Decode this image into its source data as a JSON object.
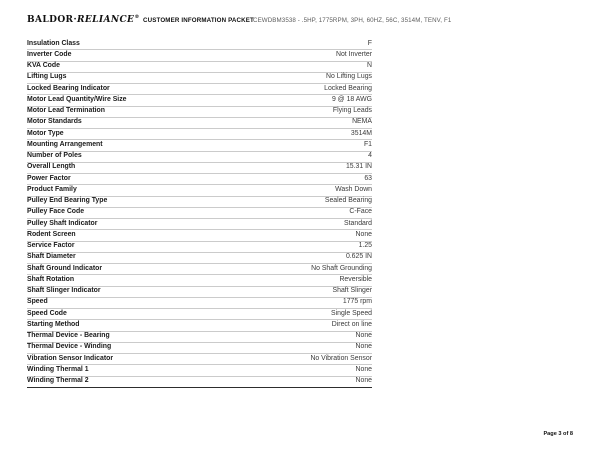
{
  "header": {
    "logo": {
      "baldor": "BALDOR",
      "separator": "·",
      "reliance": "RELIANCE",
      "mark": "®"
    },
    "title": "CUSTOMER INFORMATION PACKET",
    "product_description": "CEWDBM3538 - .5HP, 1775RPM, 3PH, 60HZ, 56C, 3514M, TENV, F1"
  },
  "spec_table": {
    "rows": [
      {
        "label": "Insulation Class",
        "value": "F"
      },
      {
        "label": "Inverter Code",
        "value": "Not Inverter"
      },
      {
        "label": "KVA Code",
        "value": "N"
      },
      {
        "label": "Lifting Lugs",
        "value": "No Lifting Lugs"
      },
      {
        "label": "Locked Bearing Indicator",
        "value": "Locked Bearing"
      },
      {
        "label": "Motor Lead Quantity/Wire Size",
        "value": "9 @ 18 AWG"
      },
      {
        "label": "Motor Lead Termination",
        "value": "Flying Leads"
      },
      {
        "label": "Motor Standards",
        "value": "NEMA"
      },
      {
        "label": "Motor Type",
        "value": "3514M"
      },
      {
        "label": "Mounting Arrangement",
        "value": "F1"
      },
      {
        "label": "Number of Poles",
        "value": "4"
      },
      {
        "label": "Overall Length",
        "value": "15.31 IN"
      },
      {
        "label": "Power Factor",
        "value": "63"
      },
      {
        "label": "Product Family",
        "value": "Wash Down"
      },
      {
        "label": "Pulley End Bearing Type",
        "value": "Sealed Bearing"
      },
      {
        "label": "Pulley Face Code",
        "value": "C-Face"
      },
      {
        "label": "Pulley Shaft Indicator",
        "value": "Standard"
      },
      {
        "label": "Rodent Screen",
        "value": "None"
      },
      {
        "label": "Service Factor",
        "value": "1.25"
      },
      {
        "label": "Shaft Diameter",
        "value": "0.625 IN"
      },
      {
        "label": "Shaft Ground Indicator",
        "value": "No Shaft Grounding"
      },
      {
        "label": "Shaft Rotation",
        "value": "Reversible"
      },
      {
        "label": "Shaft Slinger Indicator",
        "value": "Shaft Slinger"
      },
      {
        "label": "Speed",
        "value": "1775 rpm"
      },
      {
        "label": "Speed Code",
        "value": "Single Speed"
      },
      {
        "label": "Starting Method",
        "value": "Direct on line"
      },
      {
        "label": "Thermal Device - Bearing",
        "value": "None"
      },
      {
        "label": "Thermal Device - Winding",
        "value": "None"
      },
      {
        "label": "Vibration Sensor Indicator",
        "value": "No Vibration Sensor"
      },
      {
        "label": "Winding Thermal 1",
        "value": "None"
      },
      {
        "label": "Winding Thermal 2",
        "value": "None"
      }
    ]
  },
  "footer": {
    "page_label": "Page 3 of 8"
  },
  "colors": {
    "row_border": "#cbcbcb",
    "table_bottom_border": "#2d2d2d",
    "label_text": "#1a1a1a",
    "value_text": "#3a3a3a",
    "description_text": "#5d5d5d"
  }
}
